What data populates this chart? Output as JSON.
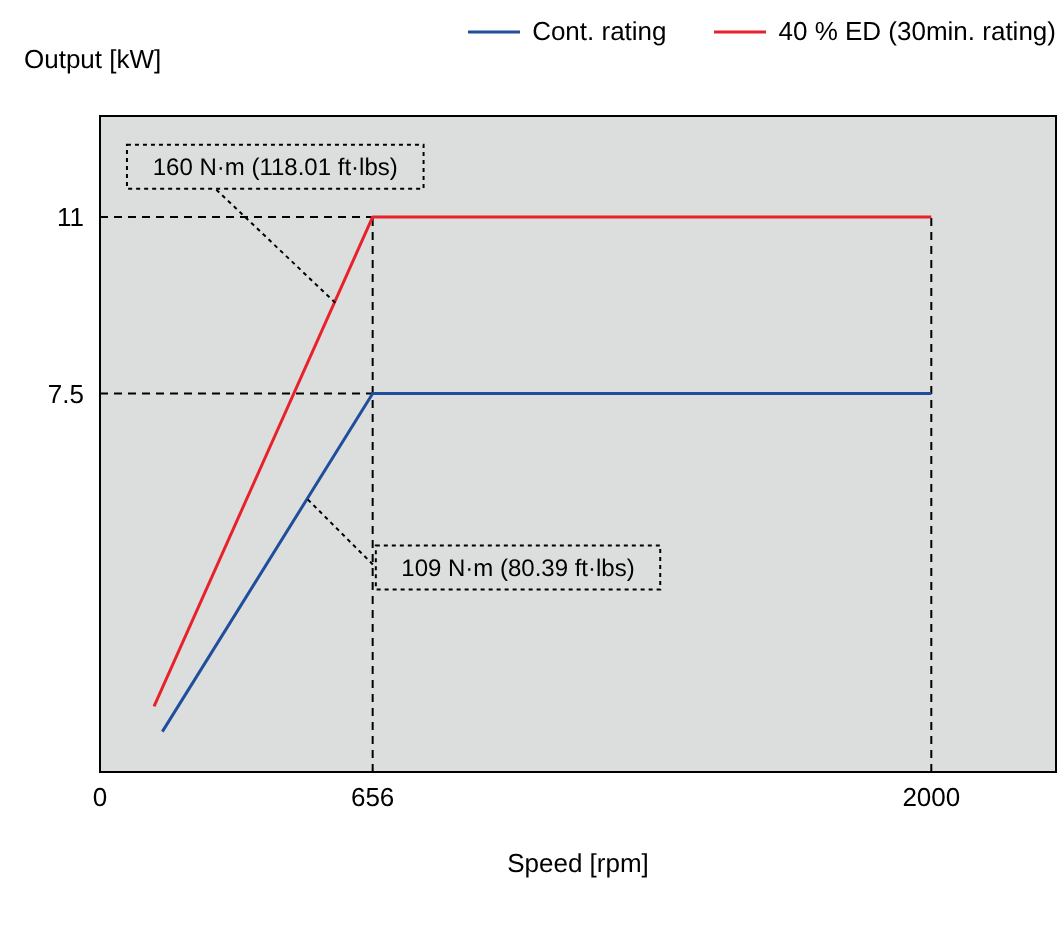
{
  "chart_data": {
    "type": "line",
    "xlabel": "Speed [rpm]",
    "ylabel": "Output [kW]",
    "xlim": [
      0,
      2300
    ],
    "xticks": [
      0,
      656,
      2000
    ],
    "ylim": [
      0,
      13
    ],
    "yticks": [
      7.5,
      11
    ],
    "series": [
      {
        "name": "Cont. rating",
        "color": "#1f4e9c",
        "x": [
          150,
          656,
          2000
        ],
        "values": [
          0.8,
          7.5,
          7.5
        ]
      },
      {
        "name": "40 % ED (30min. rating)",
        "color": "#e8222a",
        "x": [
          130,
          656,
          2000
        ],
        "values": [
          1.3,
          11,
          11
        ]
      }
    ],
    "ref_lines": [
      {
        "axis": "y",
        "value": 11,
        "line_style": "dashed",
        "color": "#000000"
      },
      {
        "axis": "y",
        "value": 7.5,
        "line_style": "dashed",
        "color": "#000000"
      },
      {
        "axis": "x",
        "value": 656,
        "line_style": "dashed",
        "color": "#000000"
      },
      {
        "axis": "x",
        "value": 2000,
        "line_style": "dashed",
        "color": "#000000"
      }
    ],
    "annotations": [
      {
        "text": "160 N·m (118.01 ft·lbs)",
        "x": 566,
        "y": 9.3
      },
      {
        "text": "109 N·m (80.39 ft·lbs)",
        "x": 500,
        "y": 5.4
      }
    ],
    "legend": "top right",
    "marker": "none",
    "line_style": "solid"
  }
}
